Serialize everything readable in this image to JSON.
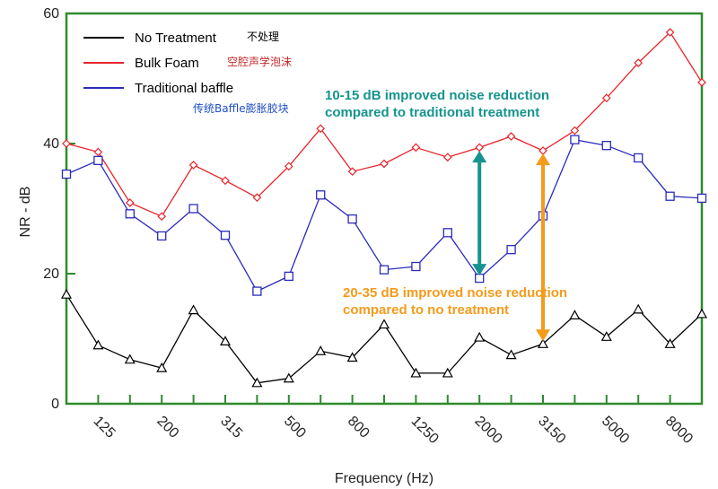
{
  "chart_data": {
    "type": "line",
    "xlabel": "Frequency (Hz)",
    "ylabel": "NR - dB",
    "ylim": [
      0,
      60
    ],
    "yticks": [
      0,
      20,
      40,
      60
    ],
    "grid": false,
    "legend_position": "top-left",
    "x_positions": [
      100,
      125,
      160,
      200,
      250,
      315,
      400,
      500,
      630,
      800,
      1000,
      1250,
      1600,
      2000,
      2500,
      3150,
      4000,
      5000,
      6300,
      8000,
      10000
    ],
    "x_tick_labels": [
      "125",
      "200",
      "315",
      "500",
      "800",
      "1250",
      "2000",
      "3150",
      "5000",
      "8000"
    ],
    "series": [
      {
        "name": "No Treatment",
        "name_cn": "不处理",
        "color": "#000000",
        "marker": "triangle",
        "values": [
          16.8,
          9,
          6.8,
          5.5,
          14.4,
          9.6,
          3.2,
          3.9,
          8.1,
          7.1,
          12.2,
          4.7,
          4.7,
          10.2,
          7.5,
          9.2,
          13.6,
          10.3,
          14.5,
          9.2,
          13.8
        ]
      },
      {
        "name": "Bulk Foam",
        "name_cn": "空腔声学泡沫",
        "color": "#e8242b",
        "marker": "diamond",
        "values": [
          40,
          38.7,
          30.9,
          28.8,
          36.7,
          34.3,
          31.7,
          36.5,
          42.3,
          35.7,
          36.9,
          39.4,
          37.9,
          39.4,
          41.1,
          38.9,
          42,
          47,
          52.4,
          57.1,
          49.4
        ]
      },
      {
        "name": "Traditional baffle",
        "name_cn": "传统Baffle膨胀胶块",
        "color": "#2b2bbd",
        "marker": "square",
        "values": [
          35.3,
          37.4,
          29.2,
          25.8,
          30,
          25.9,
          17.3,
          19.6,
          32.1,
          28.4,
          20.6,
          21.1,
          26.3,
          19.3,
          23.7,
          28.9,
          40.6,
          39.7,
          37.8,
          31.9,
          31.6
        ]
      }
    ],
    "annotations": [
      {
        "line1": "10-15 dB improved noise reduction",
        "line2": "compared to traditional treatment",
        "color": "#15948f",
        "arrow_x": 2000,
        "arrow_y": [
          39.3,
          19.3
        ]
      },
      {
        "line1": "20-35 dB improved noise reduction",
        "line2": "compared to no treatment",
        "color": "#f59b1c",
        "arrow_x": 3150,
        "arrow_y": [
          38.9,
          9.2
        ]
      }
    ]
  }
}
